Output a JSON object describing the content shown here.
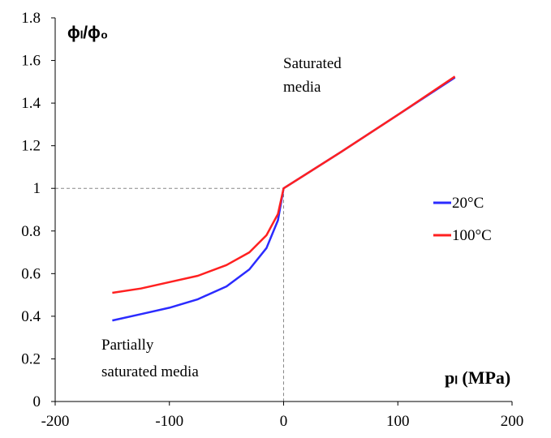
{
  "chart_data": {
    "type": "line",
    "ylabel": "ϕₗ/ϕ₀",
    "xlabel": "pₗ (MPa)",
    "xlim": [
      -200,
      200
    ],
    "ylim": [
      0,
      1.8
    ],
    "x_ticks": [
      "-200",
      "-100",
      "0",
      "100",
      "200"
    ],
    "y_ticks": [
      "0",
      "0.2",
      "0.4",
      "0.6",
      "0.8",
      "1",
      "1.2",
      "1.4",
      "1.6",
      "1.8"
    ],
    "annotations": {
      "saturated_line1": "Saturated",
      "saturated_line2": "media",
      "partial_line1": "Partially",
      "partial_line2": "saturated media"
    },
    "reference_lines": {
      "x": 0,
      "y": 1
    },
    "legend_position": "right",
    "grid": false,
    "series": [
      {
        "name": "20°C",
        "color": "#2b2bff",
        "points": [
          [
            -150,
            0.38
          ],
          [
            -125,
            0.41
          ],
          [
            -100,
            0.44
          ],
          [
            -75,
            0.48
          ],
          [
            -50,
            0.54
          ],
          [
            -30,
            0.62
          ],
          [
            -15,
            0.72
          ],
          [
            -5,
            0.85
          ],
          [
            0,
            1.0
          ],
          [
            50,
            1.17
          ],
          [
            100,
            1.345
          ],
          [
            150,
            1.52
          ]
        ]
      },
      {
        "name": "100°C",
        "color": "#ff2020",
        "points": [
          [
            -150,
            0.51
          ],
          [
            -125,
            0.53
          ],
          [
            -100,
            0.56
          ],
          [
            -75,
            0.59
          ],
          [
            -50,
            0.64
          ],
          [
            -30,
            0.7
          ],
          [
            -15,
            0.78
          ],
          [
            -5,
            0.88
          ],
          [
            0,
            1.0
          ],
          [
            50,
            1.17
          ],
          [
            100,
            1.345
          ],
          [
            150,
            1.525
          ]
        ]
      }
    ]
  }
}
